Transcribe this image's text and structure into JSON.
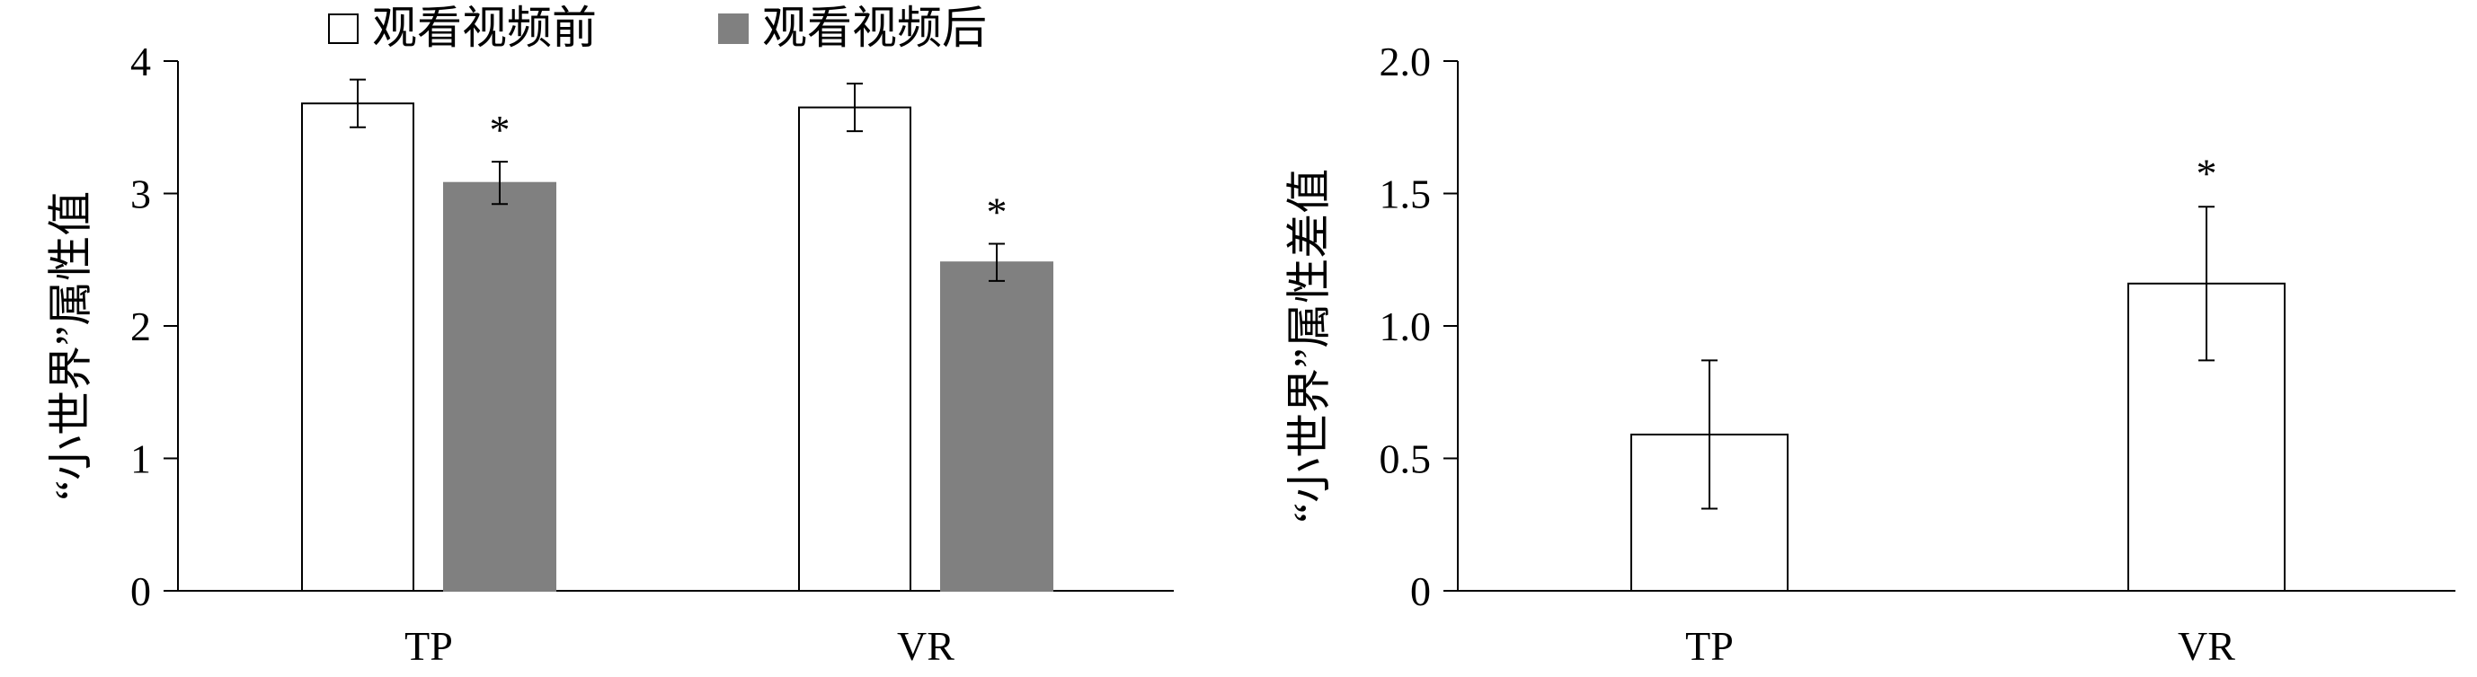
{
  "legend": {
    "before": "观看视频前",
    "after": "观看视频后"
  },
  "colors": {
    "before_fill": "#ffffff",
    "after_fill": "#808080",
    "stroke": "#000000"
  },
  "chart_data": [
    {
      "type": "bar",
      "ylabel": "“小世界”属性值",
      "categories": [
        "TP",
        "VR"
      ],
      "ylim": [
        0,
        4
      ],
      "yticks": [
        "0",
        "1",
        "2",
        "3",
        "4"
      ],
      "legend_position": "top",
      "series": [
        {
          "name": "观看视频前",
          "values": [
            3.68,
            3.65
          ],
          "error": [
            0.18,
            0.18
          ]
        },
        {
          "name": "观看视频后",
          "values": [
            3.08,
            2.48
          ],
          "error": [
            0.16,
            0.14
          ]
        }
      ],
      "annotations": [
        "*",
        "*"
      ]
    },
    {
      "type": "bar",
      "ylabel": "“小世界”属性差值",
      "categories": [
        "TP",
        "VR"
      ],
      "ylim": [
        0,
        2.0
      ],
      "yticks": [
        "0",
        "0.5",
        "1.0",
        "1.5",
        "2.0"
      ],
      "values": [
        0.59,
        1.16
      ],
      "error": [
        0.28,
        0.29
      ],
      "annotations": [
        "",
        "*"
      ]
    }
  ]
}
